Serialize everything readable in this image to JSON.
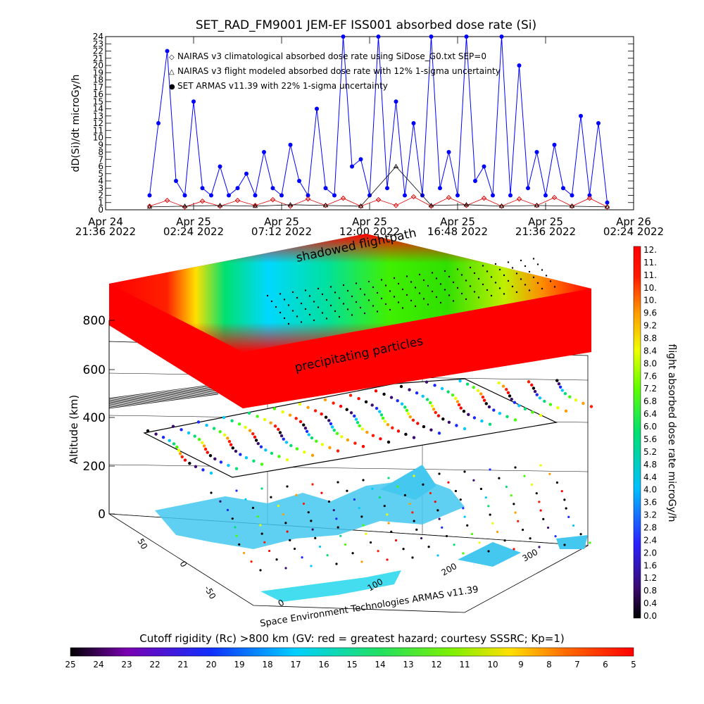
{
  "chart_data": [
    {
      "type": "line",
      "title": "SET_RAD_FM9001  JEM-EF ISS001 absorbed dose rate (Si)",
      "ylabel": "dD(Si)/dt microGy/h",
      "ylim": [
        0,
        24
      ],
      "y_ticks": [
        "0",
        "1",
        "2",
        "3",
        "4",
        "5",
        "6",
        "7",
        "8",
        "9",
        "10",
        "11",
        "12",
        "13",
        "14",
        "15",
        "16",
        "17",
        "18",
        "19",
        "20",
        "21",
        "22",
        "23",
        "24"
      ],
      "x_tick_labels": [
        [
          "Apr 24",
          "21:36 2022"
        ],
        [
          "Apr 25",
          "02:24 2022"
        ],
        [
          "Apr 25",
          "07:12 2022"
        ],
        [
          "Apr 25",
          "12:00 2022"
        ],
        [
          "Apr 25",
          "16:48 2022"
        ],
        [
          "Apr 25",
          "21:36 2022"
        ],
        [
          "Apr 26",
          "02:24 2022"
        ]
      ],
      "legend": [
        {
          "symbol": "◇",
          "color": "#dd0000",
          "text": "NAIRAS v3 climatological absorbed dose rate  using SiDose_G0.txt SEP=0"
        },
        {
          "symbol": "△",
          "color": "#000000",
          "text": "NAIRAS v3 flight modeled absorbed dose rate with 12% 1-sigma uncertainty"
        },
        {
          "symbol": "●",
          "color": "#0000ff",
          "text": "SET ARMAS v11.39 with 22% 1-sigma uncertainty"
        }
      ],
      "series": [
        {
          "name": "SET ARMAS v11.39 with 22% 1-sigma uncertainty",
          "color": "#0000ff",
          "x_hours": [
            1.5,
            2.0,
            2.5,
            3.0,
            3.5,
            4.0,
            4.5,
            5.0,
            5.5,
            6.0,
            6.5,
            7.0,
            7.5,
            8.0,
            8.5,
            9.0,
            9.5,
            10.0,
            10.5,
            11.0,
            11.5,
            12.0,
            12.5,
            13.0,
            13.5,
            14.0,
            14.5,
            15.0,
            15.5,
            16.0,
            16.5,
            17.0,
            17.5,
            18.0,
            18.5,
            19.0,
            19.5,
            20.0,
            20.5,
            21.0,
            21.5,
            22.0,
            22.5,
            23.0,
            23.5,
            24.0,
            24.5,
            25.0,
            25.5,
            26.0,
            26.5,
            27.0,
            27.5
          ],
          "values": [
            2,
            12,
            22,
            4,
            2,
            15,
            3,
            2,
            6,
            2,
            3,
            5,
            2,
            8,
            3,
            2,
            9,
            4,
            2,
            14,
            3,
            2,
            24,
            6,
            7,
            2,
            24,
            3,
            15,
            2,
            12,
            2,
            24,
            3,
            8,
            2,
            24,
            4,
            6,
            2,
            24,
            2,
            20,
            3,
            8,
            2,
            9,
            3,
            2,
            13,
            2,
            12,
            1
          ]
        },
        {
          "name": "NAIRAS v3 climatological absorbed dose rate  using SiDose_G0.txt SEP=0",
          "color": "#dd0000",
          "x_hours": [
            1.5,
            2.5,
            3.5,
            4.5,
            5.5,
            6.5,
            7.5,
            8.5,
            9.5,
            10.5,
            11.5,
            12.5,
            13.5,
            14.5,
            15.5,
            16.5,
            17.5,
            18.5,
            19.5,
            20.5,
            21.5,
            22.5,
            23.5,
            24.5,
            25.5,
            26.5,
            27.5
          ],
          "values": [
            0.5,
            1.3,
            0.4,
            1.2,
            0.5,
            1.3,
            0.6,
            1.4,
            0.5,
            1.5,
            0.6,
            1.6,
            0.5,
            1.4,
            0.6,
            1.8,
            0.5,
            1.7,
            0.6,
            1.6,
            0.5,
            1.5,
            0.6,
            1.7,
            0.5,
            1.6,
            0.4
          ]
        },
        {
          "name": "NAIRAS v3 flight modeled absorbed dose rate with 12% 1-sigma uncertainty",
          "color": "#000000",
          "x_hours": [
            1.5,
            3.5,
            5.5,
            7.5,
            9.5,
            11.5,
            13.5,
            15.5,
            17.5,
            19.5,
            21.5,
            23.5,
            25.5,
            27.5
          ],
          "values": [
            0.4,
            0.5,
            0.6,
            0.5,
            0.7,
            0.6,
            0.5,
            6,
            0.6,
            0.7,
            0.5,
            0.6,
            0.5,
            0.4
          ]
        }
      ]
    },
    {
      "type": "heatmap",
      "title": "",
      "zlabel": "Altitude (km)",
      "z_ticks": [
        "0",
        "200",
        "400",
        "600",
        "800"
      ],
      "x_ticks": [
        "0",
        "100",
        "200",
        "300"
      ],
      "y_ticks": [
        "-50",
        "0",
        "50"
      ],
      "annotations": [
        "shadowed flightpath",
        "precipitating particles",
        "Space Environment Technologies ARMAS v11.39"
      ],
      "colorbar_right": {
        "label": "flight absorbed dose rate microGy/h",
        "ticks": [
          "12.",
          "11.",
          "11.",
          "10.",
          "10.",
          "9.6",
          "9.2",
          "8.8",
          "8.4",
          "8.0",
          "7.6",
          "7.2",
          "6.8",
          "6.4",
          "6.0",
          "5.6",
          "5.2",
          "4.8",
          "4.4",
          "4.0",
          "3.6",
          "3.2",
          "2.8",
          "2.4",
          "2.0",
          "1.6",
          "1.2",
          "0.8",
          "0.4",
          "0.0"
        ]
      },
      "colorbar_bottom": {
        "label": "Cutoff rigidity (Rc) >800 km (GV: red = greatest hazard; courtesy SSSRC; Kp=1)",
        "ticks": [
          "25",
          "24",
          "23",
          "22",
          "21",
          "20",
          "19",
          "18",
          "17",
          "16",
          "15",
          "14",
          "13",
          "12",
          "11",
          "10",
          "9",
          "8",
          "7",
          "6",
          "5"
        ]
      }
    }
  ],
  "colors": {
    "rainbow": [
      "#000000",
      "#3a0a6e",
      "#1a2aff",
      "#00c8ff",
      "#00e070",
      "#40ff00",
      "#e8ff00",
      "#ff9c00",
      "#ff1a00",
      "#ff0000"
    ],
    "cutoff": [
      "#000000",
      "#7a00b0",
      "#1030ff",
      "#00d0ff",
      "#20e060",
      "#80f000",
      "#ffe000",
      "#ff6a00",
      "#ff0000"
    ]
  }
}
